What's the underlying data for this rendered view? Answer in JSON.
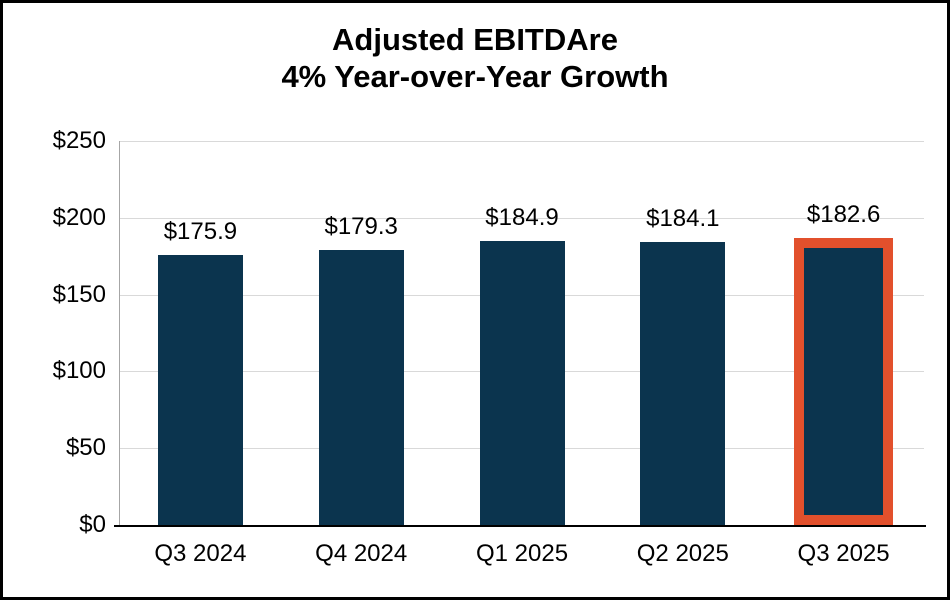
{
  "figure": {
    "title_line1": "Adjusted EBITDAre",
    "title_line2": "4% Year-over-Year Growth"
  },
  "chart_data": {
    "type": "bar",
    "title": "Adjusted EBITDAre\n4% Year-over-Year Growth",
    "categories": [
      "Q3 2024",
      "Q4 2024",
      "Q1 2025",
      "Q2 2025",
      "Q3 2025"
    ],
    "values": [
      175.9,
      179.3,
      184.9,
      184.1,
      182.6
    ],
    "data_labels": [
      "$175.9",
      "$179.3",
      "$184.9",
      "$184.1",
      "$182.6"
    ],
    "ylim": [
      0,
      250
    ],
    "yticks": [
      0,
      50,
      100,
      150,
      200,
      250
    ],
    "ytick_labels": [
      "$0",
      "$50",
      "$100",
      "$150",
      "$200",
      "$250"
    ],
    "grid": true,
    "legend": "none",
    "highlight_index": 4,
    "colors": {
      "bar": "#0b344e",
      "highlight_outline": "#e2502c",
      "gridline": "#d9d9d9",
      "axis_line": "#000000",
      "plot_border": "#a6a6a6",
      "frame_border": "#000000",
      "background": "#ffffff"
    }
  }
}
